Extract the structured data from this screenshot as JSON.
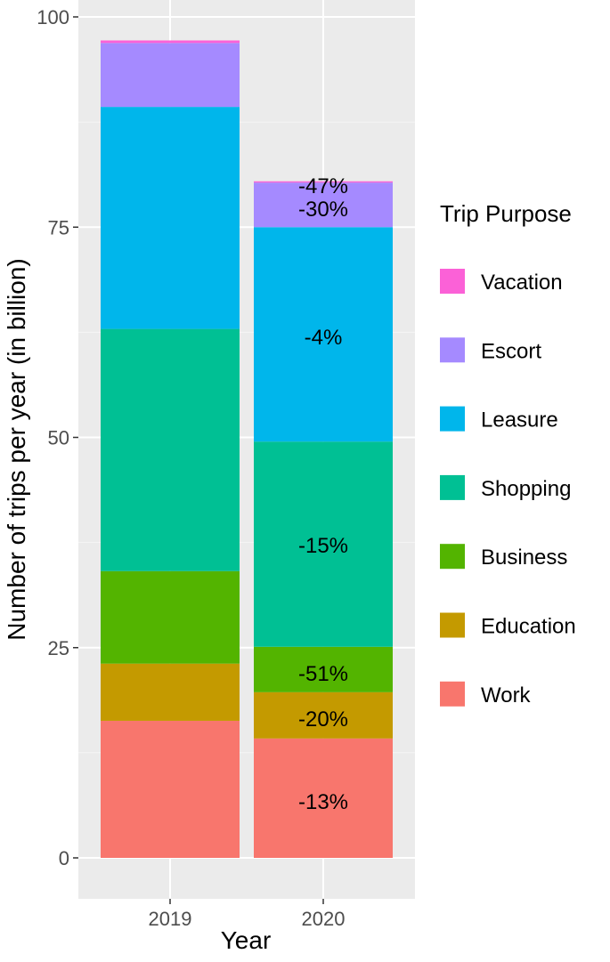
{
  "chart_data": {
    "type": "bar",
    "stacked": true,
    "title": "",
    "xlabel": "Year",
    "ylabel": "Number of trips per year (in billion)",
    "categories": [
      "2019",
      "2020"
    ],
    "ylim": [
      0,
      100
    ],
    "yticks": [
      0,
      25,
      50,
      75,
      100
    ],
    "grid": true,
    "legend_title": "Trip Purpose",
    "legend_position": "right",
    "series": [
      {
        "name": "Work",
        "color": "#F8766D",
        "values": [
          16.3,
          14.2
        ],
        "labels": [
          "",
          "-13%"
        ]
      },
      {
        "name": "Education",
        "color": "#C49A00",
        "values": [
          6.8,
          5.5
        ],
        "labels": [
          "",
          "-20%"
        ]
      },
      {
        "name": "Business",
        "color": "#53B400",
        "values": [
          11.0,
          5.4
        ],
        "labels": [
          "",
          "-51%"
        ]
      },
      {
        "name": "Shopping",
        "color": "#00C094",
        "values": [
          28.8,
          24.4
        ],
        "labels": [
          "",
          "-15%"
        ]
      },
      {
        "name": "Leasure",
        "color": "#00B6EB",
        "values": [
          26.4,
          25.5
        ],
        "labels": [
          "",
          "-4%"
        ]
      },
      {
        "name": "Escort",
        "color": "#A58AFF",
        "values": [
          7.6,
          5.3
        ],
        "labels": [
          "",
          "-30%"
        ]
      },
      {
        "name": "Vacation",
        "color": "#FB61D7",
        "values": [
          0.3,
          0.15
        ],
        "labels": [
          "",
          "-47%"
        ]
      }
    ]
  }
}
